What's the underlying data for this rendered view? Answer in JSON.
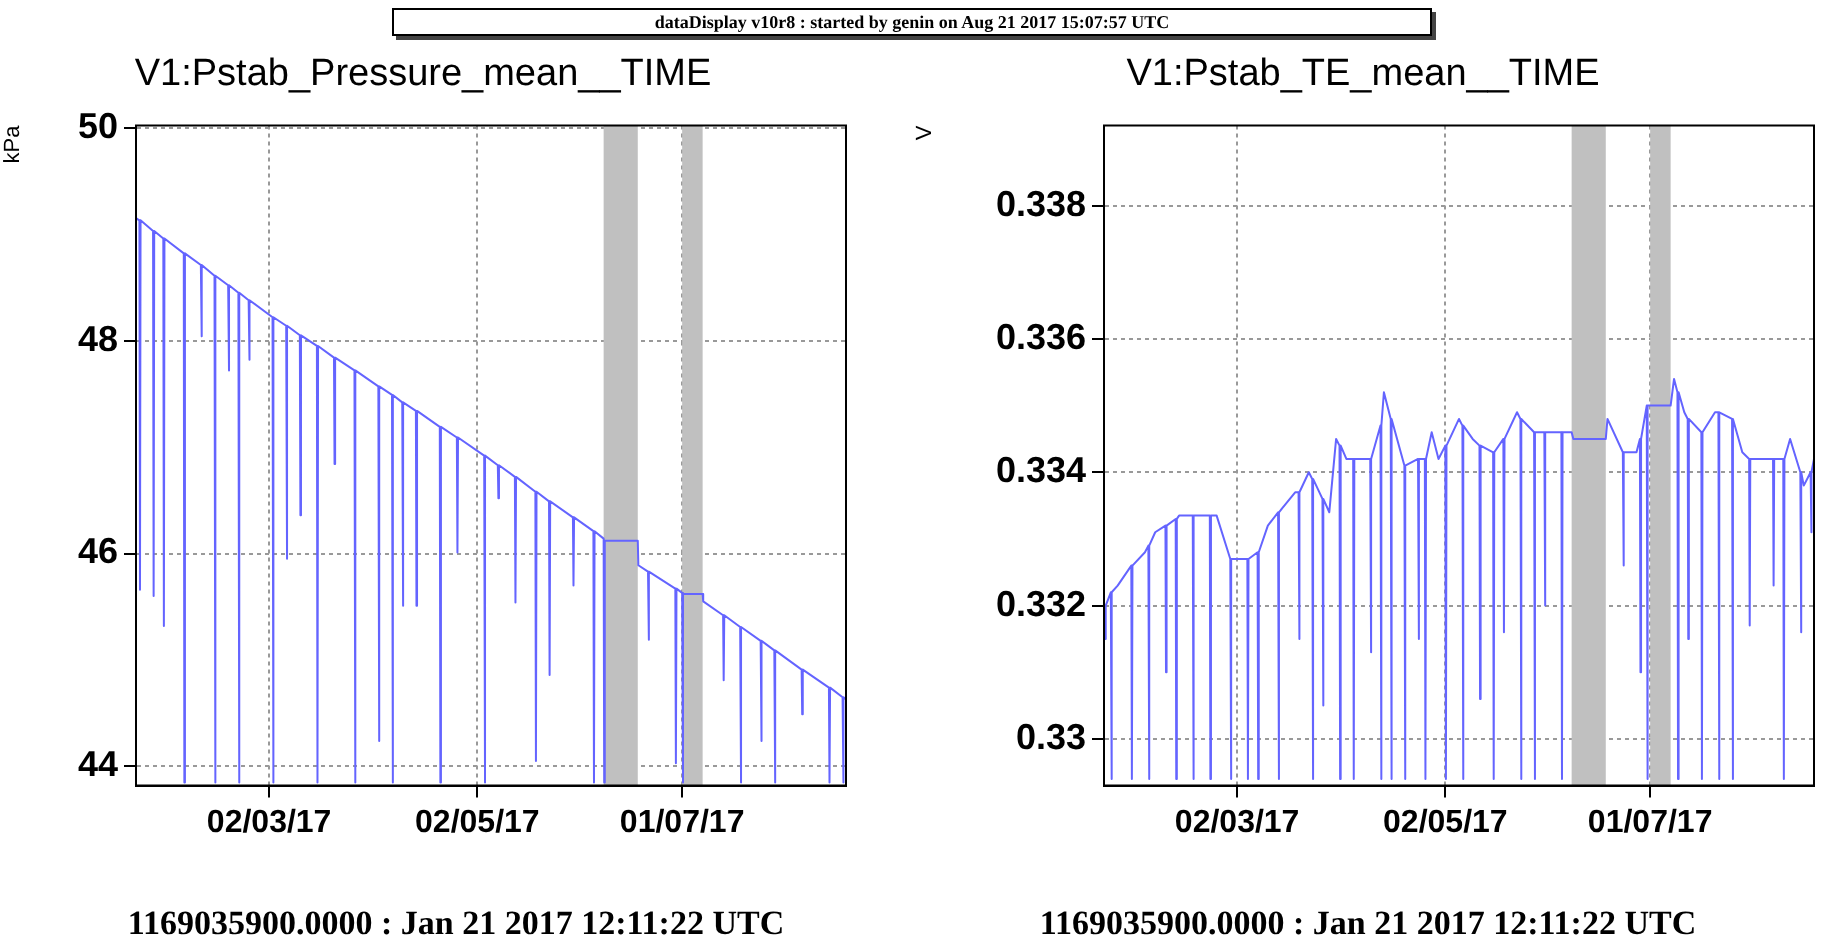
{
  "chart_data": [
    {
      "type": "line",
      "title": "V1:Pstab_Pressure_mean__TIME",
      "ylabel": "kPa",
      "color": "#6464ff",
      "grid": true,
      "annotations": [
        "dataDisplay v10r8 : started by genin on Aug 21 2017 15:07:57 UTC",
        "1169035900.0000 : Jan 21 2017 12:11:22 UTC"
      ],
      "xlim": [
        "2017-01-22",
        "2017-08-18"
      ],
      "xticks": [
        {
          "value": "2017-03-02",
          "label": "02/03/17"
        },
        {
          "value": "2017-05-02",
          "label": "02/05/17"
        },
        {
          "value": "2017-07-01",
          "label": "01/07/17"
        }
      ],
      "ylim": [
        43.82,
        50.02
      ],
      "yticks": [
        44,
        46,
        48,
        50
      ],
      "bands": [
        {
          "axis": "x",
          "from": "2017-06-08",
          "to": "2017-06-18",
          "color": "#c0c0c0"
        },
        {
          "axis": "x",
          "from": "2017-07-01",
          "to": "2017-07-07",
          "color": "#c0c0c0"
        }
      ],
      "x": [
        "2017-01-22T00:00",
        "2017-01-23T00:00",
        "2017-01-23T04:00",
        "2017-01-23T08:00",
        "2017-01-27T00:00",
        "2017-01-27T04:00",
        "2017-01-27T08:00",
        "2017-01-30T00:00",
        "2017-01-30T04:00",
        "2017-01-30T08:00",
        "2017-02-05T00:00",
        "2017-02-05T04:00",
        "2017-02-05T08:00",
        "2017-02-10T00:00",
        "2017-02-10T04:00",
        "2017-02-10T08:00",
        "2017-02-14T00:00",
        "2017-02-14T04:00",
        "2017-02-14T08:00",
        "2017-02-18T00:00",
        "2017-02-18T04:00",
        "2017-02-18T08:00",
        "2017-02-21T00:00",
        "2017-02-21T04:00",
        "2017-02-21T08:00",
        "2017-02-24T00:00",
        "2017-02-24T04:00",
        "2017-02-24T08:00",
        "2017-03-03T00:00",
        "2017-03-03T04:00",
        "2017-03-03T08:00",
        "2017-03-07T00:00",
        "2017-03-07T04:00",
        "2017-03-07T08:00",
        "2017-03-11T00:00",
        "2017-03-11T04:00",
        "2017-03-11T08:00",
        "2017-03-16T00:00",
        "2017-03-16T04:00",
        "2017-03-16T08:00",
        "2017-03-21T00:00",
        "2017-03-21T04:00",
        "2017-03-21T08:00",
        "2017-03-27T00:00",
        "2017-03-27T04:00",
        "2017-03-27T08:00",
        "2017-04-03T00:00",
        "2017-04-03T04:00",
        "2017-04-03T08:00",
        "2017-04-07T00:00",
        "2017-04-07T04:00",
        "2017-04-07T08:00",
        "2017-04-10T00:00",
        "2017-04-10T04:00",
        "2017-04-10T08:00",
        "2017-04-14T00:00",
        "2017-04-14T04:00",
        "2017-04-14T08:00",
        "2017-04-21T00:00",
        "2017-04-21T04:00",
        "2017-04-21T08:00",
        "2017-04-26T00:00",
        "2017-04-26T04:00",
        "2017-04-26T08:00",
        "2017-05-04T00:00",
        "2017-05-04T04:00",
        "2017-05-04T08:00",
        "2017-05-08T00:00",
        "2017-05-08T04:00",
        "2017-05-08T08:00",
        "2017-05-13T00:00",
        "2017-05-13T04:00",
        "2017-05-13T08:00",
        "2017-05-19T00:00",
        "2017-05-19T04:00",
        "2017-05-19T08:00",
        "2017-05-23T00:00",
        "2017-05-23T04:00",
        "2017-05-23T08:00",
        "2017-05-30T00:00",
        "2017-05-30T04:00",
        "2017-05-30T08:00",
        "2017-06-05T00:00",
        "2017-06-05T04:00",
        "2017-06-05T08:00",
        "2017-06-08T00:00",
        "2017-06-08T04:00",
        "2017-06-08T08:00",
        "2017-06-18T00:00",
        "2017-06-18T04:00",
        "2017-06-21T00:00",
        "2017-06-21T04:00",
        "2017-06-21T08:00",
        "2017-06-29T00:00",
        "2017-06-29T04:00",
        "2017-06-29T08:00",
        "2017-07-01T00:00",
        "2017-07-01T04:00",
        "2017-07-01T08:00",
        "2017-07-07T00:00",
        "2017-07-07T04:00",
        "2017-07-13T00:00",
        "2017-07-13T04:00",
        "2017-07-13T08:00",
        "2017-07-18T00:00",
        "2017-07-18T04:00",
        "2017-07-18T08:00",
        "2017-07-24T00:00",
        "2017-07-24T04:00",
        "2017-07-24T08:00",
        "2017-07-28T00:00",
        "2017-07-28T04:00",
        "2017-07-28T08:00",
        "2017-08-05T00:00",
        "2017-08-05T04:00",
        "2017-08-05T08:00",
        "2017-08-13T00:00",
        "2017-08-13T04:00",
        "2017-08-13T08:00",
        "2017-08-17T00:00",
        "2017-08-17T04:00",
        "2017-08-17T08:00",
        "2017-08-18T00:00"
      ],
      "values": [
        49.15,
        49.13,
        45.66,
        49.13,
        49.03,
        45.6,
        49.03,
        48.96,
        45.32,
        48.96,
        48.82,
        43.85,
        48.82,
        48.71,
        48.04,
        48.71,
        48.61,
        43.85,
        48.61,
        48.52,
        47.72,
        48.52,
        48.45,
        43.85,
        48.45,
        48.38,
        47.82,
        48.38,
        48.22,
        43.85,
        48.22,
        48.14,
        45.95,
        48.14,
        48.05,
        46.36,
        48.05,
        47.95,
        43.85,
        47.95,
        47.84,
        46.84,
        47.84,
        47.72,
        43.85,
        47.72,
        47.57,
        44.24,
        47.57,
        47.49,
        43.85,
        47.49,
        47.42,
        45.51,
        47.42,
        47.34,
        45.51,
        47.34,
        47.19,
        43.85,
        47.19,
        47.09,
        46.01,
        47.09,
        46.92,
        43.85,
        46.92,
        46.83,
        46.52,
        46.83,
        46.72,
        45.54,
        46.72,
        46.58,
        44.05,
        46.58,
        46.49,
        44.86,
        46.49,
        46.34,
        45.7,
        46.34,
        46.21,
        43.85,
        46.21,
        46.14,
        43.85,
        46.12,
        46.12,
        45.89,
        45.83,
        45.19,
        45.83,
        45.67,
        44.03,
        45.67,
        45.63,
        43.85,
        45.62,
        45.62,
        45.55,
        45.42,
        44.81,
        45.42,
        45.31,
        43.85,
        45.31,
        45.18,
        44.24,
        45.18,
        45.09,
        43.85,
        45.09,
        44.91,
        44.49,
        44.91,
        44.74,
        43.85,
        44.74,
        44.65,
        43.85,
        44.65,
        44.63
      ]
    },
    {
      "type": "line",
      "title": "V1:Pstab_TE_mean__TIME",
      "ylabel": "V",
      "color": "#6464ff",
      "grid": true,
      "annotations": [
        "1169035900.0000 : Jan 21 2017 12:11:22 UTC"
      ],
      "xlim": [
        "2017-01-22",
        "2017-08-18"
      ],
      "xticks": [
        {
          "value": "2017-03-02",
          "label": "02/03/17"
        },
        {
          "value": "2017-05-02",
          "label": "02/05/17"
        },
        {
          "value": "2017-07-01",
          "label": "01/07/17"
        }
      ],
      "ylim": [
        0.3293,
        0.3392
      ],
      "yticks": [
        0.33,
        0.332,
        0.334,
        0.336,
        0.338
      ],
      "bands": [
        {
          "axis": "x",
          "from": "2017-06-08",
          "to": "2017-06-18",
          "color": "#c0c0c0"
        },
        {
          "axis": "x",
          "from": "2017-07-01",
          "to": "2017-07-07",
          "color": "#c0c0c0"
        }
      ],
      "x": [
        "2017-01-22T00:00",
        "2017-01-22T12:00",
        "2017-01-24T00:00",
        "2017-01-24T04:00",
        "2017-01-24T08:00",
        "2017-01-26T00:00",
        "2017-01-30T00:00",
        "2017-01-30T04:00",
        "2017-01-30T08:00",
        "2017-02-03T00:00",
        "2017-02-04T00:00",
        "2017-02-04T04:00",
        "2017-02-04T08:00",
        "2017-02-06T00:00",
        "2017-02-09T00:00",
        "2017-02-09T04:00",
        "2017-02-09T08:00",
        "2017-02-12T00:00",
        "2017-02-12T04:00",
        "2017-02-12T08:00",
        "2017-02-13T00:00",
        "2017-02-17T00:00",
        "2017-02-17T04:00",
        "2017-02-17T08:00",
        "2017-02-22T00:00",
        "2017-02-22T04:00",
        "2017-02-22T08:00",
        "2017-02-24T00:00",
        "2017-02-28T00:00",
        "2017-02-28T04:00",
        "2017-02-28T08:00",
        "2017-03-05T00:00",
        "2017-03-05T04:00",
        "2017-03-05T08:00",
        "2017-03-08T00:00",
        "2017-03-08T04:00",
        "2017-03-08T08:00",
        "2017-03-11T00:00",
        "2017-03-14T00:00",
        "2017-03-14T04:00",
        "2017-03-14T08:00",
        "2017-03-19T00:00",
        "2017-03-20T00:00",
        "2017-03-20T04:00",
        "2017-03-20T08:00",
        "2017-03-23T00:00",
        "2017-03-24T00:00",
        "2017-03-24T04:00",
        "2017-03-24T08:00",
        "2017-03-27T00:00",
        "2017-03-27T04:00",
        "2017-03-27T08:00",
        "2017-03-29T00:00",
        "2017-03-31T00:00",
        "2017-04-01T00:00",
        "2017-04-01T04:00",
        "2017-04-01T08:00",
        "2017-04-03T00:00",
        "2017-04-05T00:00",
        "2017-04-05T04:00",
        "2017-04-05T08:00",
        "2017-04-10T00:00",
        "2017-04-10T04:00",
        "2017-04-10T08:00",
        "2017-04-13T00:00",
        "2017-04-13T04:00",
        "2017-04-13T08:00",
        "2017-04-14T00:00",
        "2017-04-16T00:00",
        "2017-04-16T04:00",
        "2017-04-16T08:00",
        "2017-04-20T00:00",
        "2017-04-20T04:00",
        "2017-04-20T08:00",
        "2017-04-24T00:00",
        "2017-04-24T04:00",
        "2017-04-24T08:00",
        "2017-04-26T00:00",
        "2017-04-26T04:00",
        "2017-04-26T08:00",
        "2017-04-28T00:00",
        "2017-04-30T00:00",
        "2017-05-02T00:00",
        "2017-05-02T04:00",
        "2017-05-02T08:00",
        "2017-05-06T00:00",
        "2017-05-07T00:00",
        "2017-05-07T04:00",
        "2017-05-07T08:00",
        "2017-05-10T00:00",
        "2017-05-12T00:00",
        "2017-05-12T04:00",
        "2017-05-12T08:00",
        "2017-05-16T00:00",
        "2017-05-16T04:00",
        "2017-05-16T08:00",
        "2017-05-19T00:00",
        "2017-05-19T04:00",
        "2017-05-19T08:00",
        "2017-05-23T00:00",
        "2017-05-24T00:00",
        "2017-05-24T04:00",
        "2017-05-24T08:00",
        "2017-05-28T00:00",
        "2017-05-28T04:00",
        "2017-05-28T08:00",
        "2017-05-31T00:00",
        "2017-05-31T04:00",
        "2017-05-31T08:00",
        "2017-06-05T00:00",
        "2017-06-05T04:00",
        "2017-06-05T08:00",
        "2017-06-08T00:00",
        "2017-06-08T12:00",
        "2017-06-18T00:00",
        "2017-06-18T12:00",
        "2017-06-23T00:00",
        "2017-06-23T04:00",
        "2017-06-23T08:00",
        "2017-06-27T00:00",
        "2017-06-28T00:00",
        "2017-06-28T04:00",
        "2017-06-28T08:00",
        "2017-06-30T00:00",
        "2017-06-30T04:00",
        "2017-06-30T08:00",
        "2017-07-01T00:00",
        "2017-07-07T00:00",
        "2017-07-08T00:00",
        "2017-07-09T00:00",
        "2017-07-09T04:00",
        "2017-07-09T08:00",
        "2017-07-11T00:00",
        "2017-07-12T00:00",
        "2017-07-12T04:00",
        "2017-07-12T08:00",
        "2017-07-16T00:00",
        "2017-07-16T04:00",
        "2017-07-16T08:00",
        "2017-07-20T00:00",
        "2017-07-21T00:00",
        "2017-07-21T04:00",
        "2017-07-21T08:00",
        "2017-07-25T00:00",
        "2017-07-25T04:00",
        "2017-07-25T08:00",
        "2017-07-28T00:00",
        "2017-07-30T00:00",
        "2017-07-30T04:00",
        "2017-07-30T08:00",
        "2017-08-01T00:00",
        "2017-08-06T00:00",
        "2017-08-06T04:00",
        "2017-08-06T08:00",
        "2017-08-09T00:00",
        "2017-08-09T04:00",
        "2017-08-09T08:00",
        "2017-08-11T00:00",
        "2017-08-14T00:00",
        "2017-08-14T04:00",
        "2017-08-14T08:00",
        "2017-08-15T00:00",
        "2017-08-17T00:00",
        "2017-08-17T04:00",
        "2017-08-17T08:00",
        "2017-08-18T00:00"
      ],
      "values": [
        0.3315,
        0.332,
        0.3322,
        0.3294,
        0.3322,
        0.3323,
        0.3326,
        0.3294,
        0.3326,
        0.3328,
        0.3329,
        0.3294,
        0.3329,
        0.3331,
        0.3332,
        0.331,
        0.3332,
        0.3333,
        0.3294,
        0.3333,
        0.33335,
        0.33335,
        0.3294,
        0.33335,
        0.33335,
        0.3294,
        0.33335,
        0.33335,
        0.3327,
        0.3294,
        0.3327,
        0.3327,
        0.3294,
        0.3327,
        0.3328,
        0.3294,
        0.3328,
        0.3332,
        0.3334,
        0.3294,
        0.3334,
        0.3337,
        0.3337,
        0.3315,
        0.3337,
        0.334,
        0.3339,
        0.3294,
        0.3339,
        0.3336,
        0.3305,
        0.3336,
        0.3334,
        0.3345,
        0.3344,
        0.3294,
        0.3344,
        0.3342,
        0.3342,
        0.3294,
        0.3342,
        0.3342,
        0.3313,
        0.3342,
        0.3347,
        0.3294,
        0.3347,
        0.3352,
        0.3348,
        0.3294,
        0.3348,
        0.3341,
        0.3294,
        0.3341,
        0.3342,
        0.3315,
        0.3342,
        0.3342,
        0.3294,
        0.3342,
        0.3346,
        0.3342,
        0.3344,
        0.3294,
        0.3344,
        0.3348,
        0.3347,
        0.3294,
        0.3347,
        0.3345,
        0.3344,
        0.3306,
        0.3344,
        0.3343,
        0.3294,
        0.3343,
        0.3345,
        0.3316,
        0.3345,
        0.3349,
        0.3348,
        0.3294,
        0.3348,
        0.3346,
        0.3294,
        0.3346,
        0.3346,
        0.332,
        0.3346,
        0.3346,
        0.3294,
        0.3346,
        0.3346,
        0.3345,
        0.3345,
        0.3348,
        0.3343,
        0.3326,
        0.3343,
        0.3343,
        0.3345,
        0.331,
        0.3345,
        0.335,
        0.3294,
        0.335,
        0.335,
        0.335,
        0.3354,
        0.3352,
        0.3294,
        0.3352,
        0.3349,
        0.3348,
        0.3315,
        0.3348,
        0.3346,
        0.3294,
        0.3346,
        0.3349,
        0.3349,
        0.3294,
        0.3349,
        0.3348,
        0.3294,
        0.3348,
        0.3343,
        0.3342,
        0.3317,
        0.3342,
        0.3342,
        0.3342,
        0.3323,
        0.3342,
        0.3342,
        0.3294,
        0.3342,
        0.3345,
        0.334,
        0.3316,
        0.334,
        0.3338,
        0.334,
        0.3331,
        0.334,
        0.3342
      ]
    }
  ]
}
